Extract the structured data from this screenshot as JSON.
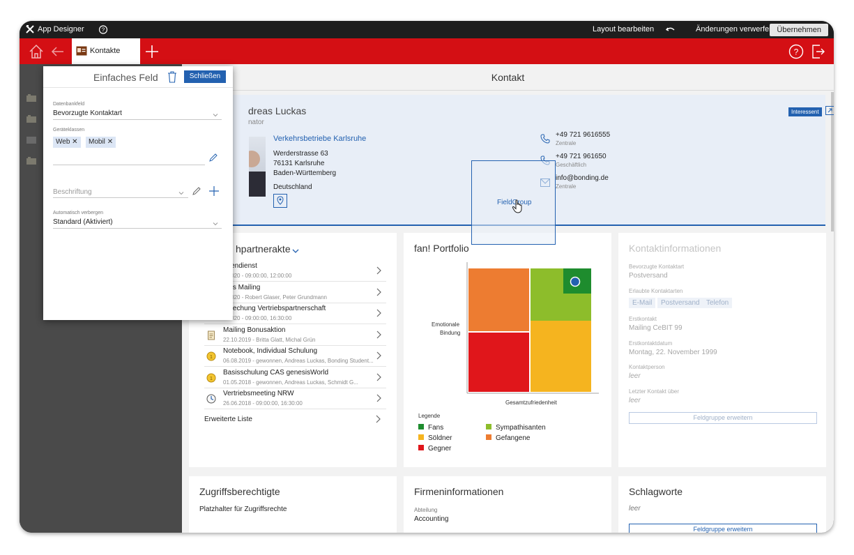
{
  "titlebar": {
    "app_name": "App Designer",
    "edit_layout": "Layout bearbeiten",
    "discard": "Änderungen verwerfen",
    "apply": "Übernehmen"
  },
  "nav": {
    "tab_label": "Kontakte"
  },
  "page": {
    "title": "Kontakt"
  },
  "contact": {
    "name_partial": "dreas Luckas",
    "role_partial": "nator",
    "status_badge": "Interessent",
    "company": "Verkehrsbetriebe Karlsruhe",
    "address_lines": [
      "Werderstrasse 63",
      "76131 Karlsruhe",
      "Baden-Württemberg"
    ],
    "country": "Deutschland",
    "phone1": "+49 721 9616555",
    "phone1_label": "Zentrale",
    "phone2": "+49 721 961650",
    "phone2_label": "Geschäftlich",
    "email": "info@bonding.de",
    "email_label": "Zentrale"
  },
  "dragdrop": {
    "label": "FieldGroup"
  },
  "partnerakte": {
    "title_partial": "hpartnerakte",
    "items": [
      {
        "title": "ndendienst",
        "sub": "9.2020 - 09:00:00, 12:00:00",
        "icon": "none"
      },
      {
        "title": "rtals Mailing",
        "sub": "8.2020 - Robert Glaser, Peter Grundmann",
        "icon": "none"
      },
      {
        "title": "sprechung Vertriebspartnerschaft",
        "sub": "4.2020 - 09:00:00, 16:30:00",
        "icon": "none"
      },
      {
        "title": "Mailing Bonusaktion",
        "sub": "22.10.2019 - Britta Glatt, Michal Grün",
        "icon": "document-icon"
      },
      {
        "title": "Notebook, Individual Schulung",
        "sub": "06.08.2019 - gewonnen, Andreas Luckas, Bonding Student...",
        "icon": "coin-icon"
      },
      {
        "title": "Basisschulung CAS genesisWorld",
        "sub": "01.05.2018 - gewonnen, Andreas Luckas, Schmidt G...",
        "icon": "coin-icon"
      },
      {
        "title": "Vertriebsmeeting NRW",
        "sub": "26.06.2018 - 09:00:00, 16:30:00",
        "icon": "clock-icon"
      }
    ],
    "extended_list": "Erweiterte Liste"
  },
  "portfolio": {
    "title": "fan! Portfolio",
    "ylabel_line1": "Emotionale",
    "ylabel_line2": "Bindung",
    "xlabel": "Gesamtzufriedenheit",
    "legend_title": "Legende",
    "legend": [
      {
        "name": "Fans",
        "color": "#1e8c2e"
      },
      {
        "name": "Sympathisanten",
        "color": "#8dbd2b"
      },
      {
        "name": "Söldner",
        "color": "#f5b41f"
      },
      {
        "name": "Gefangene",
        "color": "#ed7c31"
      },
      {
        "name": "Gegner",
        "color": "#e0161b"
      }
    ]
  },
  "kontaktinfo": {
    "title": "Kontaktinformationen",
    "preferred_label": "Bevorzugte Kontaktart",
    "preferred_value": "Postversand",
    "allowed_label": "Erlaubte Kontaktarten",
    "allowed_chips": [
      "E-Mail",
      "Postversand",
      "Telefon"
    ],
    "first_contact_label": "Erstkontakt",
    "first_contact_value": "Mailing CeBIT 99",
    "first_date_label": "Erstkontaktdatum",
    "first_date_value": "Montag, 22. November 1999",
    "person_label": "Kontaktperson",
    "person_value": "leer",
    "last_label": "Letzter Kontakt über",
    "last_value": "leer",
    "expand_button": "Feldgruppe erweitern"
  },
  "zugriff": {
    "title": "Zugriffsberechtigte",
    "placeholder": "Platzhalter für Zugriffsrechte"
  },
  "firma": {
    "title": "Firmeninformationen",
    "dept_label": "Abteilung",
    "dept_value": "Accounting"
  },
  "schlagworte": {
    "title": "Schlagworte",
    "value": "leer",
    "expand_button": "Feldgruppe erweitern"
  },
  "popup": {
    "title": "Einfaches Feld",
    "close_button": "Schließen",
    "dbfield_label": "Datenbankfeld",
    "dbfield_value": "Bevorzugte Kontaktart",
    "device_label": "Geräteklassen",
    "device_chips": [
      "Web",
      "Mobil"
    ],
    "caption_placeholder": "Beschriftung",
    "autohide_label": "Automatisch verbergen",
    "autohide_value": "Standard (Aktiviert)"
  },
  "colors": {
    "accent_red": "#d40f14",
    "accent_blue": "#2361b0"
  }
}
